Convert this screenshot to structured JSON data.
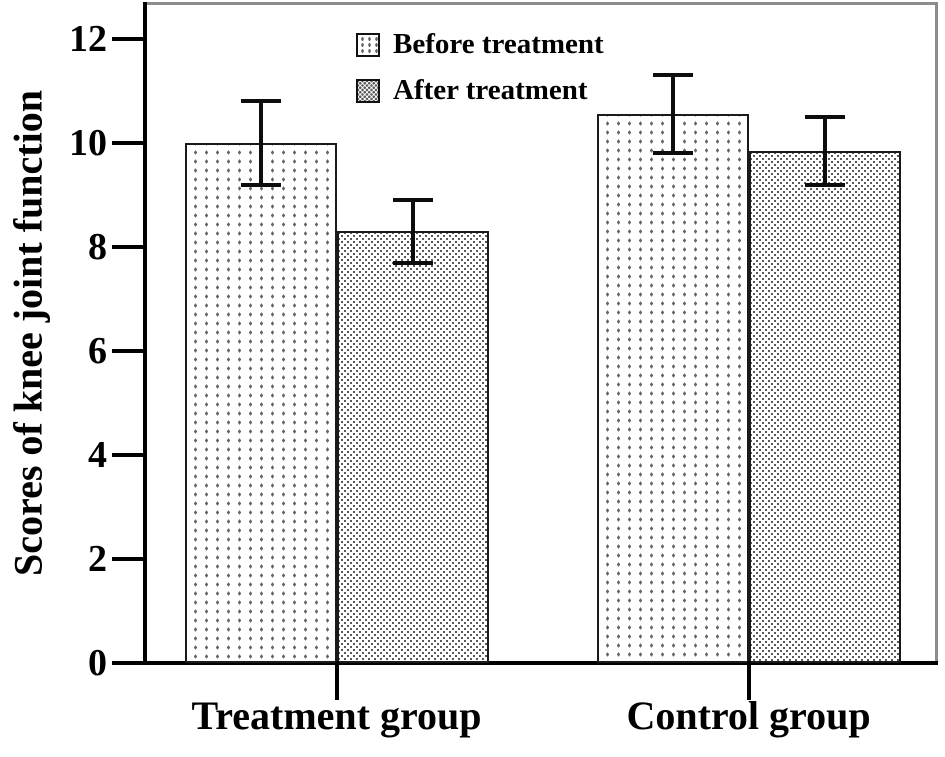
{
  "chart_data": {
    "type": "bar",
    "title": "",
    "xlabel": "",
    "ylabel": "Scores of knee joint function",
    "categories": [
      "Treatment group",
      "Control group"
    ],
    "series": [
      {
        "name": "Before treatment",
        "values": [
          10.0,
          10.55
        ],
        "errors": [
          0.8,
          0.75
        ],
        "pattern": "sparse-vertical-dot-columns"
      },
      {
        "name": "After treatment",
        "values": [
          8.3,
          9.85
        ],
        "errors": [
          0.6,
          0.65
        ],
        "pattern": "dense-offset-dot-stipple"
      }
    ],
    "error_bars": true,
    "ylim": [
      0,
      12.67
    ],
    "yticks": [
      0,
      2,
      4,
      6,
      8,
      10,
      12
    ],
    "grid": false,
    "legend_position": "top-center",
    "colors": {
      "bar_fill": "#ffffff",
      "bar_border": "#1a1a1a",
      "dot_color": "#666666",
      "axis_color": "#000000",
      "frame_color": "#8c8c8c",
      "text_color": "#000000",
      "background": "#ffffff"
    }
  }
}
